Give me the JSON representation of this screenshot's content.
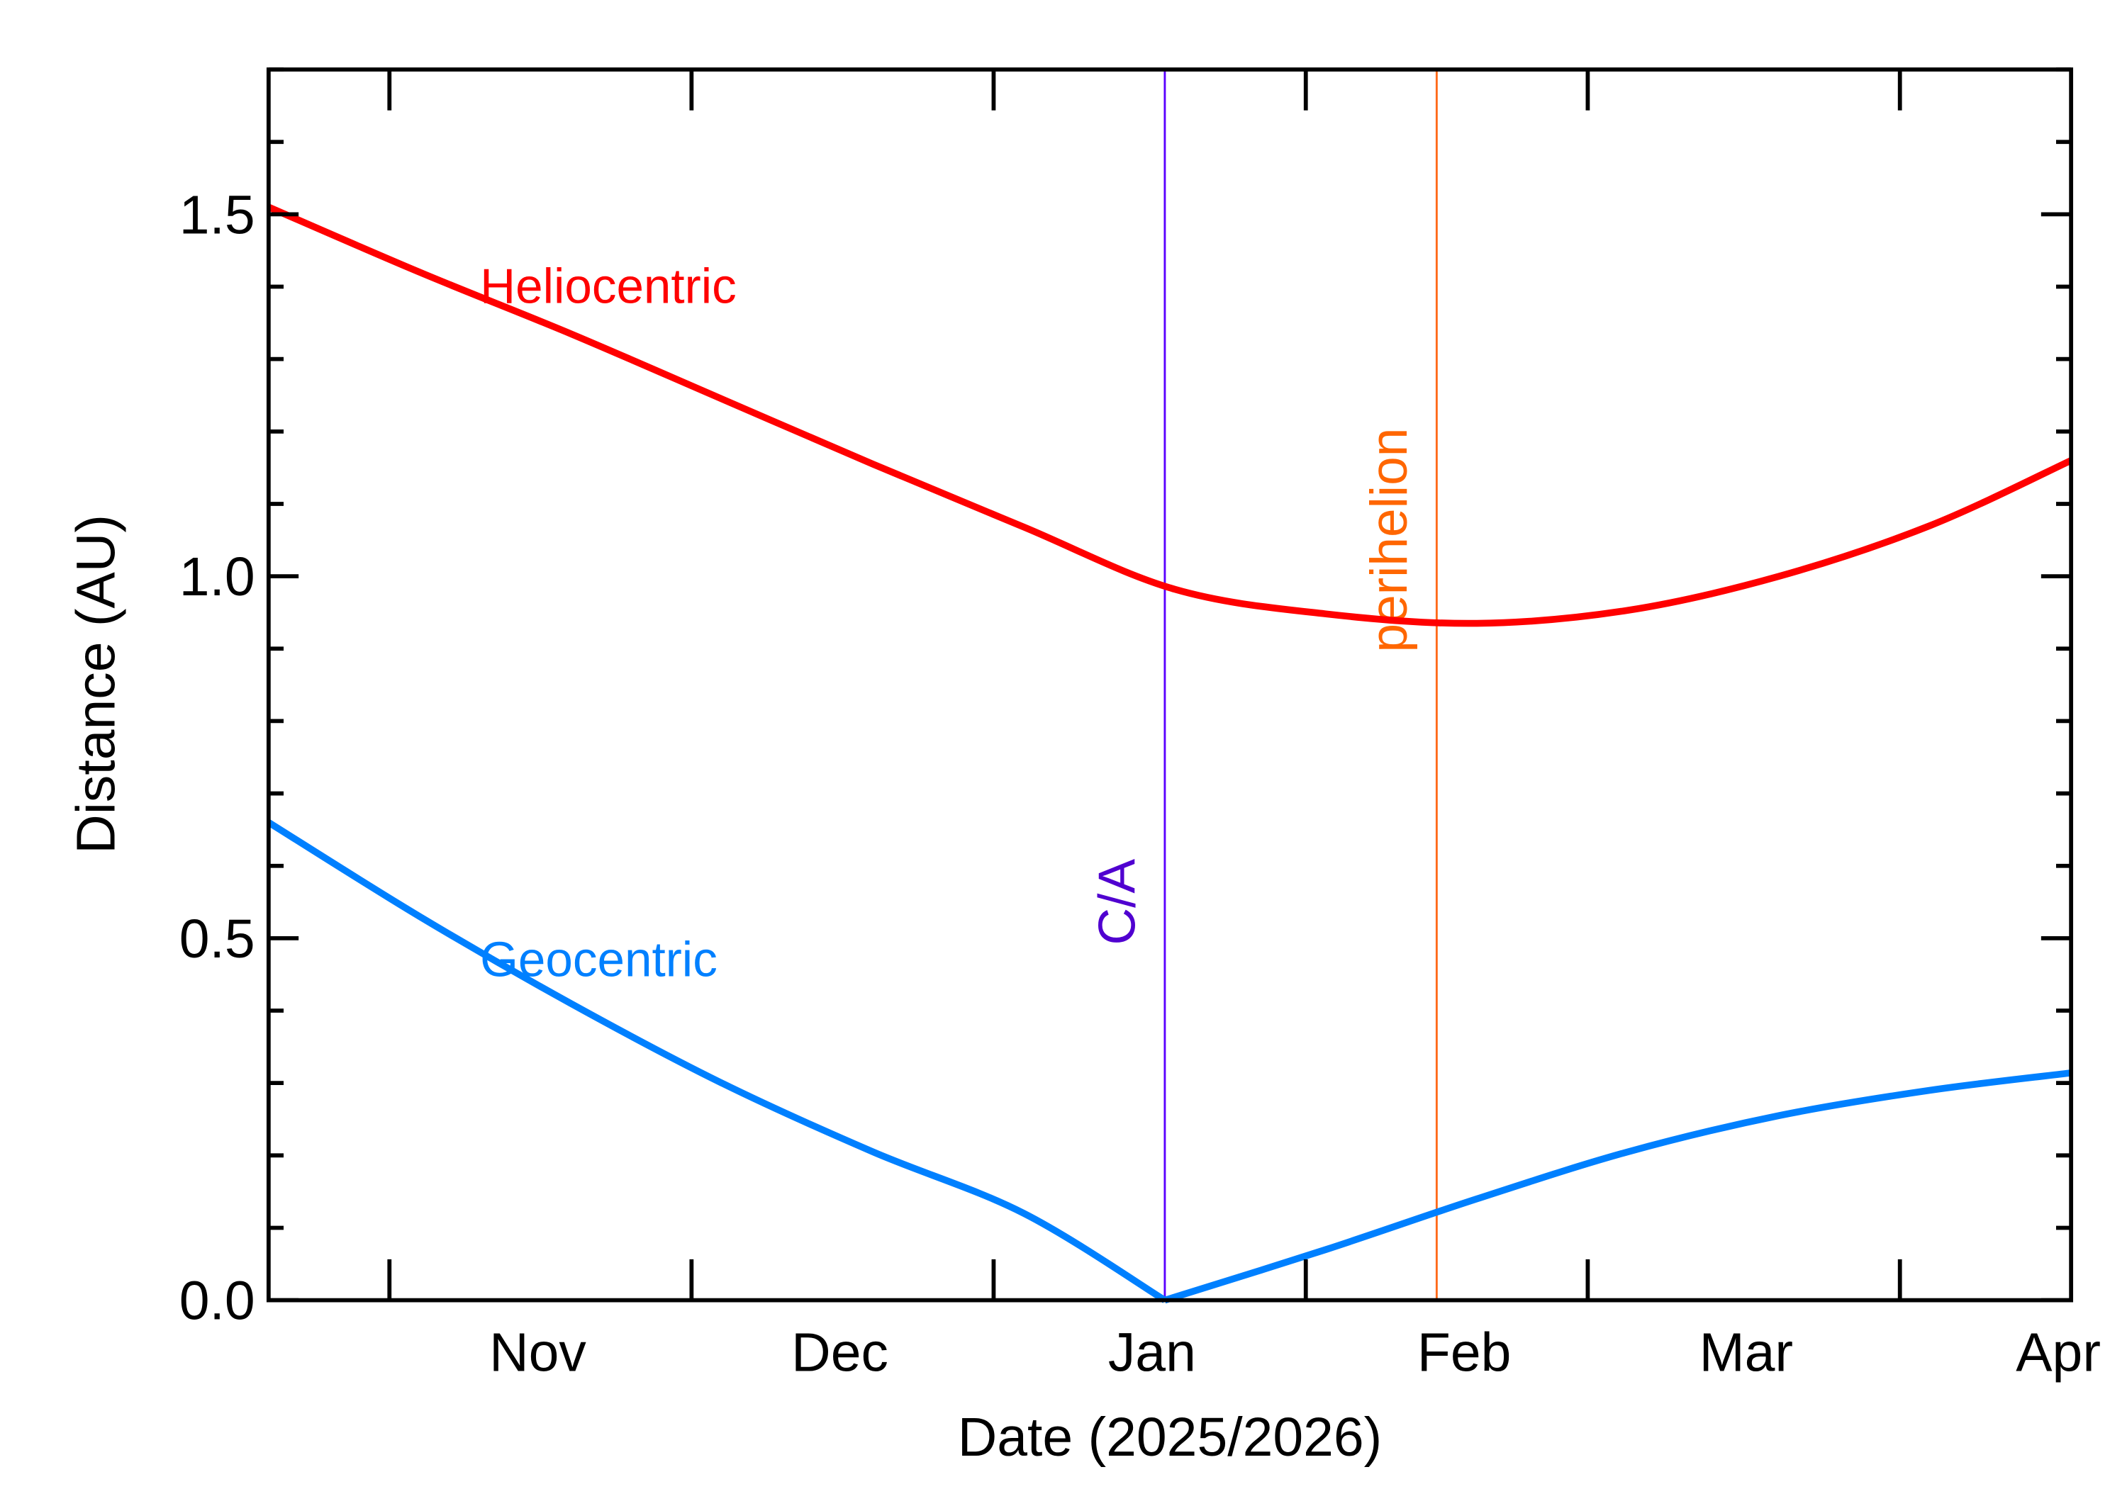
{
  "chart_data": {
    "type": "line",
    "title": "",
    "xlabel": "Date (2025/2026)",
    "ylabel": "Distance (AU)",
    "xlim": [
      "2025-10-05",
      "2026-04-02"
    ],
    "ylim": [
      0,
      1.7
    ],
    "grid": false,
    "x_tick_labels": [
      {
        "label": "Nov",
        "date": "2025-11-01"
      },
      {
        "label": "Dec",
        "date": "2025-12-01"
      },
      {
        "label": "Jan",
        "date": "2026-01-01"
      },
      {
        "label": "Feb",
        "date": "2026-02-01"
      },
      {
        "label": "Mar",
        "date": "2026-03-01"
      },
      {
        "label": "Apr",
        "date": "2026-04-01"
      }
    ],
    "x_major_ticks": [
      "2025-10-17",
      "2025-11-16",
      "2025-12-16",
      "2026-01-16",
      "2026-02-13",
      "2026-03-16"
    ],
    "y_ticks": [
      {
        "value": 0.0,
        "label": "0.0"
      },
      {
        "value": 0.5,
        "label": "0.5"
      },
      {
        "value": 1.0,
        "label": "1.0"
      },
      {
        "value": 1.5,
        "label": "1.5"
      }
    ],
    "y_minor_step": 0.1,
    "series": [
      {
        "name": "Heliocentric",
        "color": "#ff0000",
        "label_anchor": {
          "date": "2025-10-26",
          "value": 1.4
        },
        "x": [
          "2025-10-05",
          "2025-10-20",
          "2025-11-04",
          "2025-11-19",
          "2025-12-04",
          "2025-12-19",
          "2026-01-03",
          "2026-01-18",
          "2026-02-02",
          "2026-02-17",
          "2026-03-04",
          "2026-03-19",
          "2026-04-02"
        ],
        "y": [
          1.51,
          1.42,
          1.335,
          1.245,
          1.155,
          1.068,
          0.982,
          0.948,
          0.935,
          0.953,
          1.0,
          1.07,
          1.16
        ]
      },
      {
        "name": "Geocentric",
        "color": "#0080ff",
        "label_anchor": {
          "date": "2025-10-26",
          "value": 0.47
        },
        "x": [
          "2025-10-05",
          "2025-10-20",
          "2025-11-04",
          "2025-11-19",
          "2025-12-04",
          "2025-12-19",
          "2026-01-02",
          "2026-01-18",
          "2026-02-02",
          "2026-02-17",
          "2026-03-04",
          "2026-03-19",
          "2026-04-02"
        ],
        "y": [
          0.66,
          0.53,
          0.41,
          0.3,
          0.205,
          0.12,
          0.0,
          0.07,
          0.14,
          0.205,
          0.255,
          0.29,
          0.314
        ]
      }
    ],
    "annotations": [
      {
        "label": "C/A",
        "date": "2026-01-02",
        "color": "#5000d0",
        "line_color": "#5a00ff",
        "label_value": 0.55
      },
      {
        "label": "perihelion",
        "date": "2026-01-29",
        "color": "#ff6600",
        "line_color": "#ff6a1a",
        "label_value": 1.05
      }
    ]
  }
}
